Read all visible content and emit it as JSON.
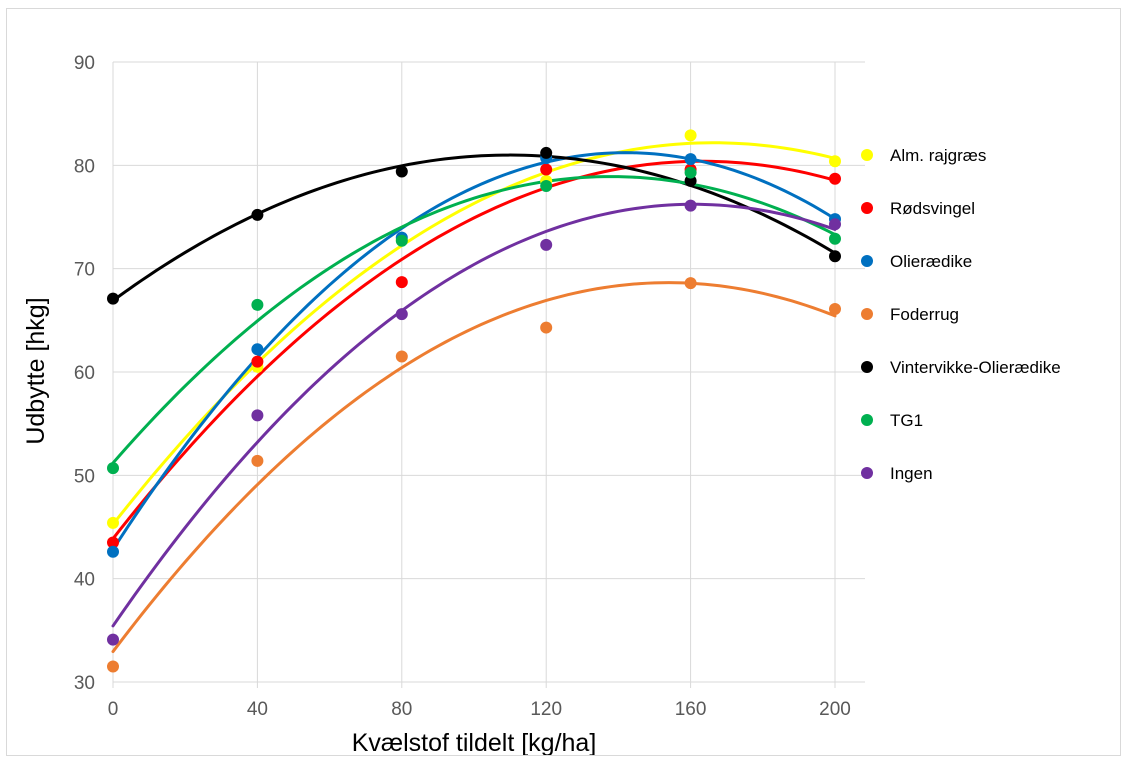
{
  "chart_data": {
    "type": "scatter",
    "xlabel": "Kvælstof tildelt [kg/ha]",
    "ylabel": "Udbytte [hkg]",
    "xlim": [
      0,
      200
    ],
    "ylim": [
      30,
      90
    ],
    "x_ticks": [
      "0",
      "40",
      "80",
      "120",
      "160",
      "200"
    ],
    "y_ticks": [
      "30",
      "40",
      "50",
      "60",
      "70",
      "80",
      "90"
    ],
    "grid": true,
    "legend_position": "right",
    "trendline": "polynomial-2",
    "x": [
      0,
      40,
      80,
      120,
      160,
      200
    ],
    "series": [
      {
        "name": "Alm. rajgræs",
        "color": "#ffff00",
        "values": [
          45.4,
          60.5,
          72.8,
          78.5,
          82.9,
          80.4
        ]
      },
      {
        "name": "Rødsvingel",
        "color": "#ff0000",
        "values": [
          43.5,
          61.0,
          68.7,
          79.6,
          79.6,
          78.7
        ]
      },
      {
        "name": "Olierædike",
        "color": "#0070c0",
        "values": [
          42.6,
          62.2,
          73.0,
          80.7,
          80.6,
          74.8
        ]
      },
      {
        "name": "Foderrug",
        "color": "#ed7d31",
        "values": [
          31.5,
          51.4,
          61.5,
          64.3,
          68.6,
          66.1
        ]
      },
      {
        "name": "Vintervikke-Olierædike",
        "color": "#000000",
        "values": [
          67.1,
          75.2,
          79.4,
          81.2,
          78.5,
          71.2
        ]
      },
      {
        "name": "TG1",
        "color": "#00b050",
        "values": [
          50.7,
          66.5,
          72.7,
          78.0,
          79.3,
          72.9
        ]
      },
      {
        "name": "Ingen",
        "color": "#7030a0",
        "values": [
          34.1,
          55.8,
          65.6,
          72.3,
          76.1,
          74.3
        ]
      }
    ]
  }
}
